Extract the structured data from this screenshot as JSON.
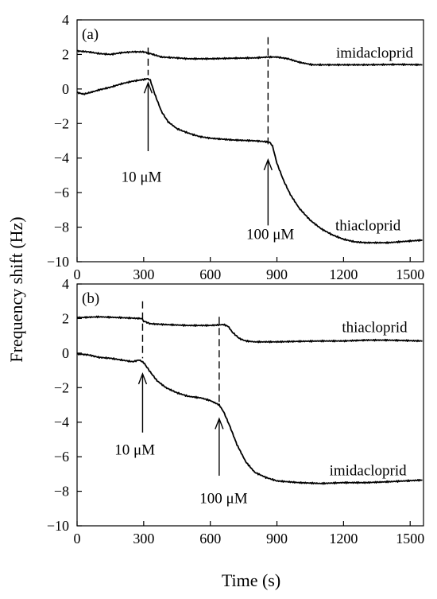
{
  "figure": {
    "ylabel": "Frequency shift (Hz)",
    "xlabel": "Time (s)"
  },
  "chart_data": [
    {
      "type": "line",
      "panel_label": "(a)",
      "xlim": [
        0,
        1560
      ],
      "ylim": [
        -10,
        4
      ],
      "x_ticks": [
        0,
        300,
        600,
        900,
        1200,
        1500
      ],
      "y_ticks": [
        -10,
        -8,
        -6,
        -4,
        -2,
        0,
        2,
        4
      ],
      "grid": false,
      "series": [
        {
          "name": "imidacloprid",
          "label_at": [
            1340,
            2.1
          ],
          "points": [
            [
              0,
              2.2
            ],
            [
              50,
              2.15
            ],
            [
              100,
              2.05
            ],
            [
              150,
              2.0
            ],
            [
              200,
              2.1
            ],
            [
              250,
              2.15
            ],
            [
              300,
              2.15
            ],
            [
              330,
              2.05
            ],
            [
              380,
              1.85
            ],
            [
              450,
              1.8
            ],
            [
              500,
              1.75
            ],
            [
              600,
              1.75
            ],
            [
              700,
              1.78
            ],
            [
              800,
              1.8
            ],
            [
              860,
              1.85
            ],
            [
              900,
              1.85
            ],
            [
              950,
              1.75
            ],
            [
              1000,
              1.55
            ],
            [
              1060,
              1.4
            ],
            [
              1150,
              1.4
            ],
            [
              1300,
              1.4
            ],
            [
              1450,
              1.42
            ],
            [
              1555,
              1.4
            ]
          ]
        },
        {
          "name": "thiacloprid",
          "label_at": [
            1310,
            -7.9
          ],
          "points": [
            [
              0,
              -0.2
            ],
            [
              30,
              -0.3
            ],
            [
              60,
              -0.2
            ],
            [
              100,
              -0.05
            ],
            [
              150,
              0.1
            ],
            [
              200,
              0.3
            ],
            [
              250,
              0.45
            ],
            [
              300,
              0.55
            ],
            [
              320,
              0.6
            ],
            [
              330,
              0.5
            ],
            [
              350,
              -0.3
            ],
            [
              380,
              -1.3
            ],
            [
              410,
              -1.9
            ],
            [
              450,
              -2.3
            ],
            [
              500,
              -2.55
            ],
            [
              550,
              -2.75
            ],
            [
              600,
              -2.85
            ],
            [
              700,
              -2.95
            ],
            [
              800,
              -3.0
            ],
            [
              850,
              -3.05
            ],
            [
              870,
              -3.1
            ],
            [
              880,
              -3.3
            ],
            [
              900,
              -4.3
            ],
            [
              930,
              -5.3
            ],
            [
              960,
              -6.1
            ],
            [
              1000,
              -6.9
            ],
            [
              1050,
              -7.6
            ],
            [
              1100,
              -8.1
            ],
            [
              1150,
              -8.45
            ],
            [
              1200,
              -8.7
            ],
            [
              1250,
              -8.85
            ],
            [
              1300,
              -8.9
            ],
            [
              1400,
              -8.9
            ],
            [
              1500,
              -8.8
            ],
            [
              1555,
              -8.75
            ]
          ]
        }
      ],
      "injection_marks": [
        {
          "x": 320,
          "dash_from": 2.4,
          "dash_to": 0.8,
          "arrow_from": -3.6,
          "arrow_to": 0.35,
          "label": "10 μM",
          "label_at": [
            290,
            -5.1
          ]
        },
        {
          "x": 860,
          "dash_from": 3.0,
          "dash_to": -3.2,
          "arrow_from": -7.9,
          "arrow_to": -4.1,
          "label": "100 μM",
          "label_at": [
            870,
            -8.4
          ]
        }
      ]
    },
    {
      "type": "line",
      "panel_label": "(b)",
      "xlim": [
        0,
        1560
      ],
      "ylim": [
        -10,
        4
      ],
      "x_ticks": [
        0,
        300,
        600,
        900,
        1200,
        1500
      ],
      "y_ticks": [
        -10,
        -8,
        -6,
        -4,
        -2,
        0,
        2,
        4
      ],
      "grid": false,
      "series": [
        {
          "name": "thiacloprid",
          "label_at": [
            1340,
            1.5
          ],
          "points": [
            [
              0,
              2.05
            ],
            [
              100,
              2.1
            ],
            [
              200,
              2.05
            ],
            [
              290,
              2.0
            ],
            [
              300,
              1.85
            ],
            [
              330,
              1.7
            ],
            [
              400,
              1.65
            ],
            [
              500,
              1.6
            ],
            [
              600,
              1.6
            ],
            [
              660,
              1.65
            ],
            [
              680,
              1.55
            ],
            [
              700,
              1.2
            ],
            [
              730,
              0.85
            ],
            [
              760,
              0.7
            ],
            [
              800,
              0.65
            ],
            [
              900,
              0.65
            ],
            [
              1000,
              0.68
            ],
            [
              1100,
              0.7
            ],
            [
              1200,
              0.7
            ],
            [
              1300,
              0.75
            ],
            [
              1400,
              0.75
            ],
            [
              1555,
              0.7
            ]
          ]
        },
        {
          "name": "imidacloprid",
          "label_at": [
            1310,
            -6.8
          ],
          "points": [
            [
              0,
              -0.05
            ],
            [
              50,
              -0.1
            ],
            [
              100,
              -0.25
            ],
            [
              150,
              -0.3
            ],
            [
              200,
              -0.4
            ],
            [
              250,
              -0.5
            ],
            [
              280,
              -0.4
            ],
            [
              300,
              -0.55
            ],
            [
              330,
              -1.1
            ],
            [
              360,
              -1.6
            ],
            [
              400,
              -2.0
            ],
            [
              450,
              -2.3
            ],
            [
              500,
              -2.5
            ],
            [
              560,
              -2.6
            ],
            [
              600,
              -2.75
            ],
            [
              640,
              -3.0
            ],
            [
              660,
              -3.4
            ],
            [
              690,
              -4.3
            ],
            [
              720,
              -5.3
            ],
            [
              760,
              -6.3
            ],
            [
              800,
              -6.9
            ],
            [
              850,
              -7.2
            ],
            [
              900,
              -7.4
            ],
            [
              1000,
              -7.5
            ],
            [
              1100,
              -7.55
            ],
            [
              1200,
              -7.5
            ],
            [
              1300,
              -7.5
            ],
            [
              1400,
              -7.45
            ],
            [
              1555,
              -7.35
            ]
          ]
        }
      ],
      "injection_marks": [
        {
          "x": 295,
          "dash_from": 3.0,
          "dash_to": -0.3,
          "arrow_from": -4.6,
          "arrow_to": -1.2,
          "label": "10 μM",
          "label_at": [
            260,
            -5.6
          ]
        },
        {
          "x": 640,
          "dash_from": 2.1,
          "dash_to": -2.9,
          "arrow_from": -7.1,
          "arrow_to": -3.8,
          "label": "100 μM",
          "label_at": [
            660,
            -8.4
          ]
        }
      ]
    }
  ]
}
